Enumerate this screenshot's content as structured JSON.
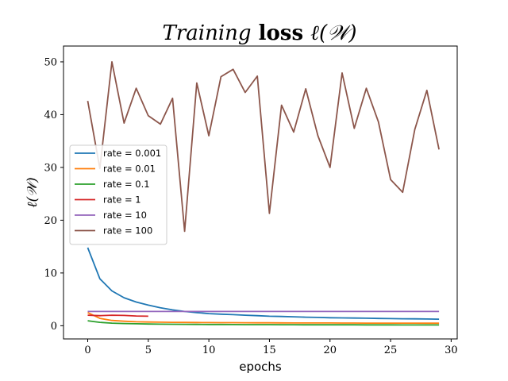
{
  "chart_data": {
    "type": "line",
    "title_parts": [
      {
        "text": "Training",
        "style": "italic"
      },
      {
        "text": " loss ",
        "style": "bold"
      },
      {
        "text": "ℓ(𝒲)",
        "style": "italic"
      }
    ],
    "xlabel": "epochs",
    "ylabel": "ℓ(𝒲)",
    "xlim": [
      -2,
      30.5
    ],
    "ylim": [
      -2.5,
      53
    ],
    "xticks": [
      0,
      5,
      10,
      15,
      20,
      25,
      30
    ],
    "yticks": [
      0,
      10,
      20,
      30,
      40,
      50
    ],
    "grid": false,
    "legend_position": "center-left",
    "series": [
      {
        "name": "rate = 0.001",
        "color": "#1f77b4",
        "x": [
          0,
          1,
          2,
          3,
          4,
          5,
          6,
          7,
          8,
          9,
          10,
          11,
          12,
          13,
          14,
          15,
          16,
          17,
          18,
          19,
          20,
          21,
          22,
          23,
          24,
          25,
          26,
          27,
          28,
          29
        ],
        "y": [
          14.8,
          8.9,
          6.6,
          5.3,
          4.5,
          3.9,
          3.4,
          3.0,
          2.7,
          2.5,
          2.3,
          2.2,
          2.1,
          2.0,
          1.9,
          1.8,
          1.75,
          1.7,
          1.62,
          1.58,
          1.52,
          1.48,
          1.45,
          1.42,
          1.38,
          1.35,
          1.32,
          1.3,
          1.28,
          1.25
        ]
      },
      {
        "name": "rate = 0.01",
        "color": "#ff7f0e",
        "x": [
          0,
          1,
          2,
          3,
          4,
          5,
          6,
          7,
          8,
          9,
          10,
          11,
          12,
          13,
          14,
          15,
          16,
          17,
          18,
          19,
          20,
          21,
          22,
          23,
          24,
          25,
          26,
          27,
          28,
          29
        ],
        "y": [
          2.5,
          1.4,
          1.0,
          0.85,
          0.75,
          0.7,
          0.67,
          0.65,
          0.63,
          0.62,
          0.6,
          0.59,
          0.58,
          0.57,
          0.56,
          0.55,
          0.54,
          0.53,
          0.53,
          0.52,
          0.52,
          0.51,
          0.51,
          0.5,
          0.5,
          0.5,
          0.49,
          0.49,
          0.48,
          0.48
        ]
      },
      {
        "name": "rate = 0.1",
        "color": "#2ca02c",
        "x": [
          0,
          1,
          2,
          3,
          4,
          5,
          6,
          7,
          8,
          9,
          10,
          11,
          12,
          13,
          14,
          15,
          16,
          17,
          18,
          19,
          20,
          21,
          22,
          23,
          24,
          25,
          26,
          27,
          28,
          29
        ],
        "y": [
          0.95,
          0.65,
          0.5,
          0.42,
          0.37,
          0.33,
          0.3,
          0.28,
          0.26,
          0.25,
          0.24,
          0.23,
          0.22,
          0.21,
          0.2,
          0.2,
          0.19,
          0.19,
          0.18,
          0.18,
          0.17,
          0.17,
          0.17,
          0.16,
          0.16,
          0.16,
          0.15,
          0.15,
          0.15,
          0.15
        ]
      },
      {
        "name": "rate = 1",
        "color": "#d62728",
        "x": [
          0,
          1,
          2,
          3,
          4,
          5
        ],
        "y": [
          2.0,
          1.9,
          2.0,
          1.95,
          1.85,
          1.8
        ]
      },
      {
        "name": "rate = 10",
        "color": "#9467bd",
        "x": [
          0,
          1,
          2,
          3,
          4,
          5,
          6,
          7,
          8,
          9,
          10,
          11,
          12,
          13,
          14,
          15,
          16,
          17,
          18,
          19,
          20,
          21,
          22,
          23,
          24,
          25,
          26,
          27,
          28,
          29
        ],
        "y": [
          2.7,
          2.7,
          2.7,
          2.7,
          2.7,
          2.7,
          2.7,
          2.7,
          2.7,
          2.7,
          2.7,
          2.7,
          2.7,
          2.7,
          2.7,
          2.7,
          2.7,
          2.7,
          2.7,
          2.7,
          2.7,
          2.7,
          2.7,
          2.7,
          2.7,
          2.7,
          2.7,
          2.7,
          2.7,
          2.7
        ]
      },
      {
        "name": "rate = 100",
        "color": "#8c564b",
        "x": [
          0,
          1,
          2,
          3,
          4,
          5,
          6,
          7,
          8,
          9,
          10,
          11,
          12,
          13,
          14,
          15,
          16,
          17,
          18,
          19,
          20,
          21,
          22,
          23,
          24,
          25,
          26,
          27,
          28,
          29
        ],
        "y": [
          42.6,
          29.8,
          50.0,
          38.4,
          45.0,
          39.8,
          38.2,
          43.1,
          17.9,
          46.0,
          36.0,
          47.2,
          48.6,
          44.2,
          47.3,
          21.3,
          41.8,
          36.7,
          44.9,
          36.0,
          30.0,
          47.9,
          37.4,
          45.0,
          38.6,
          27.7,
          25.3,
          37.2,
          44.6,
          33.4
        ]
      }
    ]
  }
}
